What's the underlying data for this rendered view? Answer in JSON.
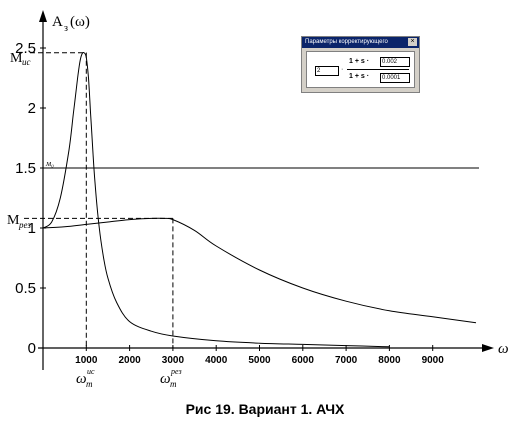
{
  "chart_data": {
    "type": "line",
    "ylabel": "A",
    "ylabel_sub": "з",
    "ylabel_arg": "(ω)",
    "xlabel": "ω",
    "xlim": [
      0,
      10000
    ],
    "ylim": [
      0,
      2.5
    ],
    "x_ticks": [
      1000,
      2000,
      3000,
      4000,
      5000,
      6000,
      7000,
      8000,
      9000
    ],
    "y_ticks": [
      0,
      0.5,
      1,
      1.5,
      2,
      2.5
    ],
    "y_tick_labels": [
      "0",
      "0.5",
      "1",
      "1.5",
      "2",
      "2.5"
    ],
    "series": [
      {
        "x": [
          0,
          200,
          400,
          600,
          700,
          800,
          850,
          900,
          950,
          1000,
          1050,
          1100,
          1150,
          1200,
          1300,
          1400,
          1500,
          1700,
          2000,
          2500,
          3000,
          4000,
          5000,
          6000,
          7000,
          8000
        ],
        "y": [
          1.0,
          1.05,
          1.25,
          1.65,
          1.95,
          2.25,
          2.38,
          2.45,
          2.46,
          2.42,
          2.25,
          1.95,
          1.65,
          1.38,
          1.0,
          0.75,
          0.58,
          0.38,
          0.22,
          0.14,
          0.1,
          0.06,
          0.04,
          0.03,
          0.02,
          0.01
        ]
      },
      {
        "x": [
          0,
          500,
          1000,
          1500,
          2000,
          2500,
          2800,
          3000,
          3500,
          4000,
          5000,
          6000,
          7000,
          8000,
          9000,
          10000
        ],
        "y": [
          1.0,
          1.01,
          1.03,
          1.05,
          1.07,
          1.08,
          1.08,
          1.07,
          0.98,
          0.85,
          0.65,
          0.5,
          0.39,
          0.31,
          0.26,
          0.21
        ]
      }
    ],
    "annotations": {
      "M_lc": {
        "main": "M",
        "sub": "ис",
        "y": 2.46
      },
      "M_rez": {
        "main": "M",
        "sub": "рез",
        "y": 1.08
      },
      "M0": {
        "label": "м₀",
        "y": 1.5
      },
      "omega_lc": {
        "main": "ω",
        "sup": "ис",
        "sub": "m",
        "x": 1000
      },
      "omega_rez": {
        "main": "ω",
        "sup": "рез",
        "sub": "m",
        "x": 3000
      }
    }
  },
  "dialog": {
    "title": "Параметры корректирующего",
    "close": "×",
    "k": "2",
    "numerator_prefix": "1 + s ·",
    "numerator_value": "0.002",
    "denominator_prefix": "1 + s ·",
    "denominator_value": "0.0001"
  },
  "caption": "Рис 19. Вариант 1. АЧХ"
}
